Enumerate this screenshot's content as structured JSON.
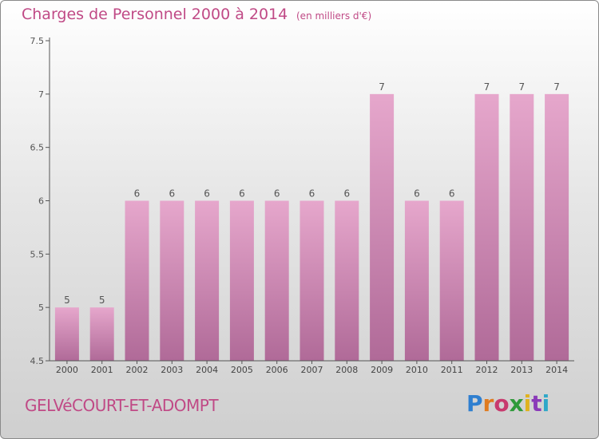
{
  "header": {
    "title": "Charges de Personnel 2000 à 2014",
    "subtitle": "(en milliers d'€)"
  },
  "footer": {
    "commune": "GELVéCOURT-ET-ADOMPT",
    "logo_text": "Proxiti",
    "logo_colors": [
      "#2f7fd0",
      "#e07b1f",
      "#c83a6e",
      "#2f9a3a",
      "#e0b21f",
      "#8a3ab9",
      "#2fa8c8"
    ]
  },
  "colors": {
    "bar_top": "#e6a7cc",
    "bar_bottom": "#b06a98",
    "text_accent": "#c04a86",
    "axis": "#555555"
  },
  "chart_data": {
    "type": "bar",
    "title": "Charges de Personnel 2000 à 2014",
    "subtitle": "(en milliers d'€)",
    "xlabel": "",
    "ylabel": "",
    "categories": [
      "2000",
      "2001",
      "2002",
      "2003",
      "2004",
      "2005",
      "2006",
      "2007",
      "2008",
      "2009",
      "2010",
      "2011",
      "2012",
      "2013",
      "2014"
    ],
    "values": [
      5,
      5,
      6,
      6,
      6,
      6,
      6,
      6,
      6,
      7,
      6,
      6,
      7,
      7,
      7
    ],
    "data_labels": [
      "5",
      "5",
      "6",
      "6",
      "6",
      "6",
      "6",
      "6",
      "6",
      "7",
      "6",
      "6",
      "7",
      "7",
      "7"
    ],
    "ylim": [
      4.5,
      7.5
    ],
    "yticks": [
      4.5,
      5,
      5.5,
      6,
      6.5,
      7,
      7.5
    ],
    "ytick_labels": [
      "4.5",
      "5",
      "5.5",
      "6",
      "6.5",
      "7",
      "7.5"
    ],
    "grid": false,
    "legend": "none"
  }
}
